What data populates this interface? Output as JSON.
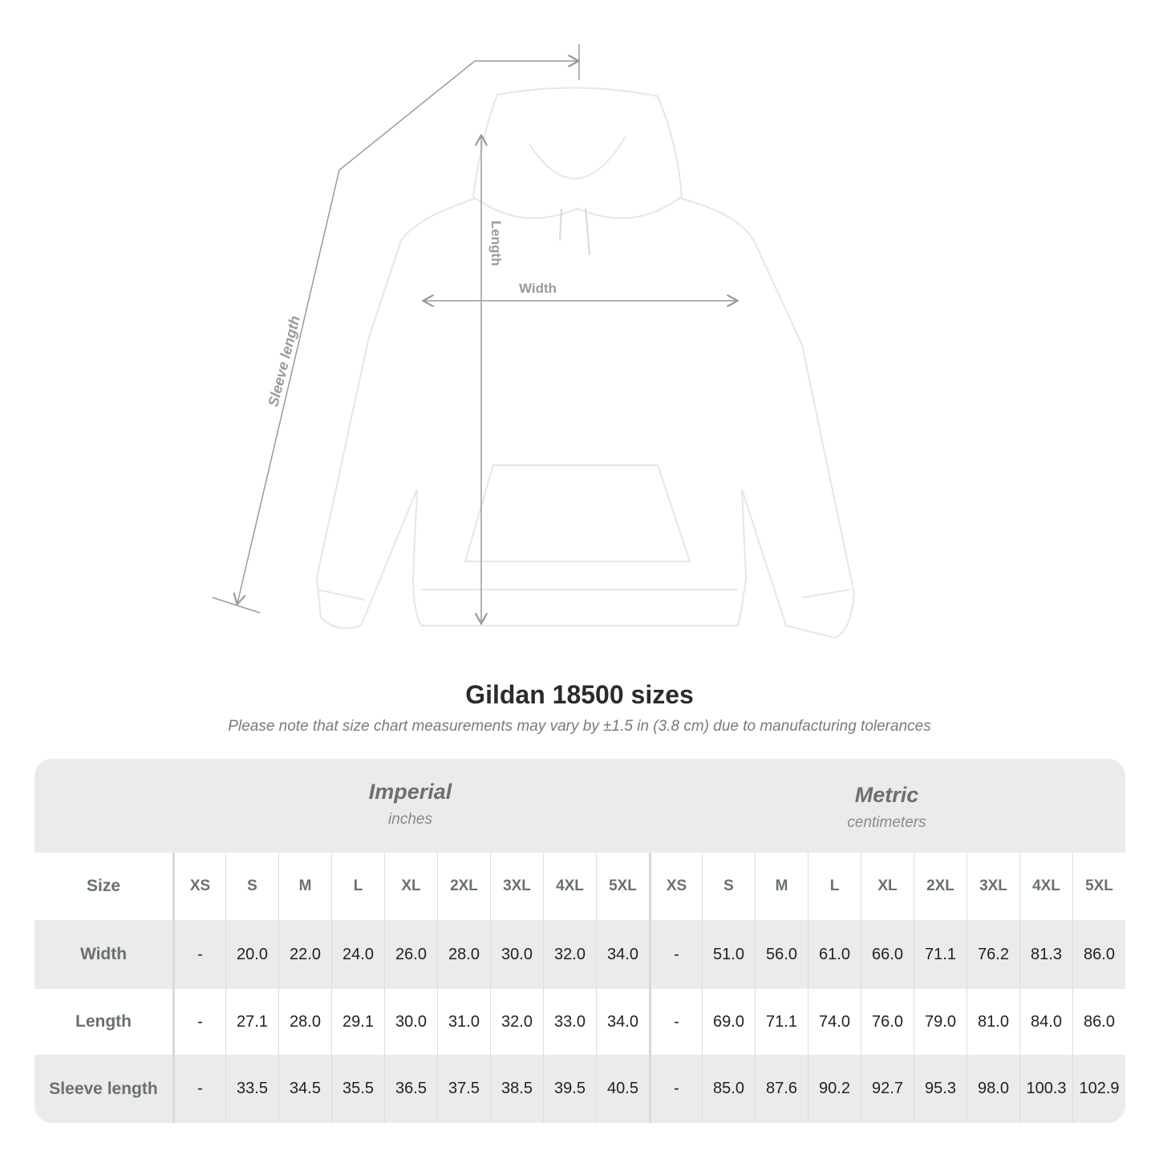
{
  "illustration": {
    "labels": {
      "length": "Length",
      "width": "Width",
      "sleeve_length": "Sleeve length"
    },
    "garment_color": "#ffffff",
    "line_color": "#9a9a9a"
  },
  "title": "Gildan 18500 sizes",
  "subtitle": "Please note that size chart measurements may vary by ±1.5 in (3.8 cm) due to manufacturing tolerances",
  "table": {
    "imperial": {
      "title": "Imperial",
      "unit": "inches"
    },
    "metric": {
      "title": "Metric",
      "unit": "centimeters"
    },
    "size_label": "Size",
    "sizes": [
      "XS",
      "S",
      "M",
      "L",
      "XL",
      "2XL",
      "3XL",
      "4XL",
      "5XL"
    ],
    "rows": [
      {
        "label": "Width",
        "imperial": [
          "-",
          "20.0",
          "22.0",
          "24.0",
          "26.0",
          "28.0",
          "30.0",
          "32.0",
          "34.0"
        ],
        "metric": [
          "-",
          "51.0",
          "56.0",
          "61.0",
          "66.0",
          "71.1",
          "76.2",
          "81.3",
          "86.0"
        ]
      },
      {
        "label": "Length",
        "imperial": [
          "-",
          "27.1",
          "28.0",
          "29.1",
          "30.0",
          "31.0",
          "32.0",
          "33.0",
          "34.0"
        ],
        "metric": [
          "-",
          "69.0",
          "71.1",
          "74.0",
          "76.0",
          "79.0",
          "81.0",
          "84.0",
          "86.0"
        ]
      },
      {
        "label": "Sleeve length",
        "imperial": [
          "-",
          "33.5",
          "34.5",
          "35.5",
          "36.5",
          "37.5",
          "38.5",
          "39.5",
          "40.5"
        ],
        "metric": [
          "-",
          "85.0",
          "87.6",
          "90.2",
          "92.7",
          "95.3",
          "98.0",
          "100.3",
          "102.9"
        ]
      }
    ]
  }
}
